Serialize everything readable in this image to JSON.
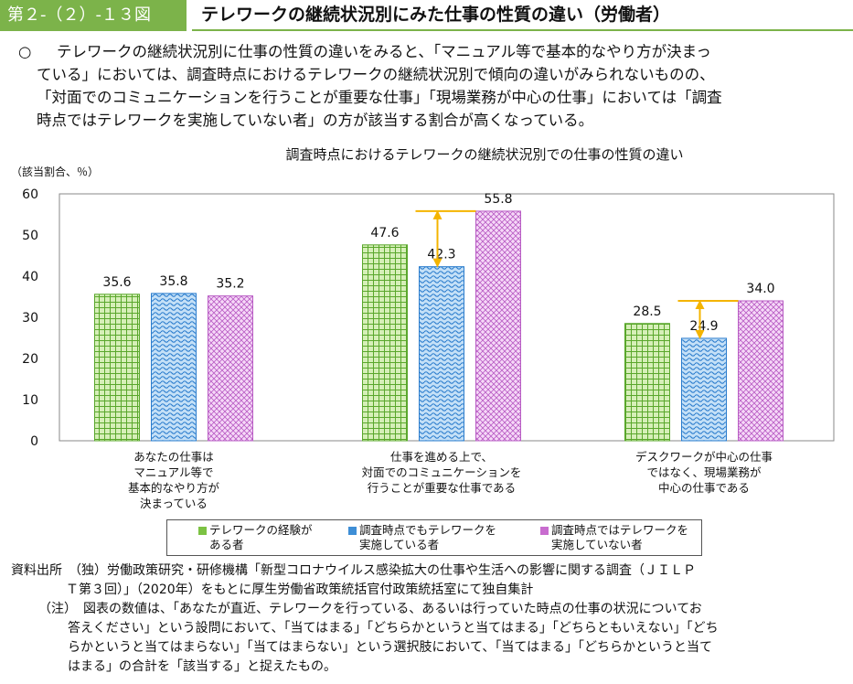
{
  "header": {
    "figure_label": "第２-（２）-１３図",
    "title": "テレワークの継続状況別にみた仕事の性質の違い（労働者）"
  },
  "summary": {
    "mark": "○",
    "lines": [
      "テレワークの継続状況別に仕事の性質の違いをみると、「マニュアル等で基本的なやり方が決まっ",
      "ている」においては、調査時点におけるテレワークの継続状況別で傾向の違いがみられないものの、",
      "「対面でのコミュニケーションを行うことが重要な仕事」「現場業務が中心の仕事」においては「調査",
      "時点ではテレワークを実施していない者」の方が該当する割合が高くなっている。"
    ]
  },
  "chart_data": {
    "type": "bar",
    "title": "調査時点におけるテレワークの継続状況別での仕事の性質の違い",
    "ylabel": "（該当割合、％）",
    "ylim": [
      0,
      60
    ],
    "yticks": [
      "0",
      "10",
      "20",
      "30",
      "40",
      "50",
      "60"
    ],
    "grid": false,
    "legend_position": "bottom",
    "categories": [
      [
        "あなたの仕事は",
        "マニュアル等で",
        "基本的なやり方が",
        "決まっている"
      ],
      [
        "仕事を進める上で、",
        "対面でのコミュニケーションを",
        "行うことが重要な仕事である"
      ],
      [
        "デスクワークが中心の仕事",
        "ではなく、現場業務が",
        "中心の仕事である"
      ]
    ],
    "series": [
      {
        "name": [
          "テレワークの経験が",
          "ある者"
        ],
        "values": [
          35.6,
          47.6,
          28.5
        ],
        "labels": [
          "35.6",
          "47.6",
          "28.5"
        ],
        "color": "#7cc243"
      },
      {
        "name": [
          "調査時点でもテレワークを",
          "実施している者"
        ],
        "values": [
          35.8,
          42.3,
          24.9
        ],
        "labels": [
          "35.8",
          "42.3",
          "24.9"
        ],
        "color": "#3e8ed6"
      },
      {
        "name": [
          "調査時点ではテレワークを",
          "実施していない者"
        ],
        "values": [
          35.2,
          55.8,
          34.0
        ],
        "labels": [
          "35.2",
          "55.8",
          "34.0"
        ],
        "color": "#c86ccf"
      }
    ],
    "annotations": {
      "arrows_between_series": [
        2,
        3
      ],
      "arrow_color": "#f4b400"
    }
  },
  "source": {
    "label": "資料出所",
    "line1": "（独）労働政策研究・研修機構「新型コロナウイルス感染拡大の仕事や生活への影響に関する調査（ＪＩＬＰ",
    "line2": "Ｔ第３回）」（2020年）をもとに厚生労働省政策統括官付政策統括室にて独自集計",
    "note_label": "（注）",
    "note_lines": [
      "図表の数値は、「あなたが直近、テレワークを行っている、あるいは行っていた時点の仕事の状況についてお",
      "答えください」という設問において、「当てはまる」「どちらかというと当てはまる」「どちらともいえない」「どち",
      "らかというと当てはまらない」「当てはまらない」という選択肢において、「当てはまる」「どちらかというと当て",
      "はまる」の合計を「該当する」と捉えたもの。"
    ]
  }
}
